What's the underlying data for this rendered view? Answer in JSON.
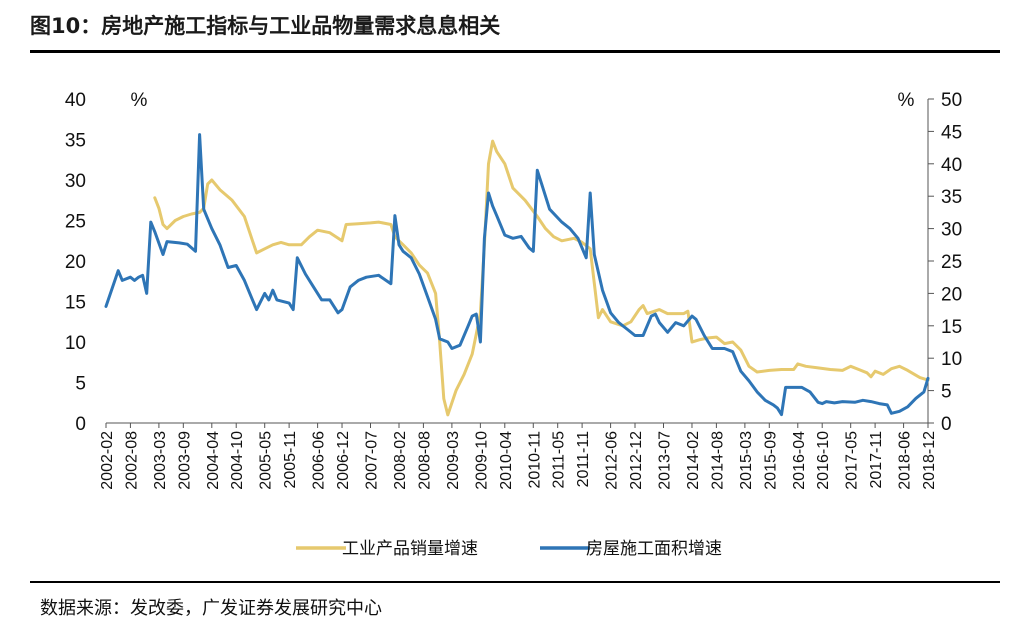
{
  "figure": {
    "title": "图10：房地产施工指标与工业品物量需求息息相关",
    "source": "数据来源：发改委，广发证券发展研究中心"
  },
  "chart_data": {
    "type": "line",
    "title": "图10：房地产施工指标与工业品物量需求息息相关",
    "left_axis": {
      "unit": "%",
      "ylim": [
        0,
        40
      ],
      "ticks": [
        0,
        5,
        10,
        15,
        20,
        25,
        30,
        35,
        40
      ]
    },
    "right_axis": {
      "unit": "%",
      "ylim": [
        0,
        50
      ],
      "ticks": [
        0,
        5,
        10,
        15,
        20,
        25,
        30,
        35,
        40,
        45,
        50
      ]
    },
    "x_ticks": [
      "2002-02",
      "2002-08",
      "2003-03",
      "2003-09",
      "2004-04",
      "2004-10",
      "2005-05",
      "2005-11",
      "2006-06",
      "2006-12",
      "2007-07",
      "2008-02",
      "2008-08",
      "2009-03",
      "2009-10",
      "2010-04",
      "2010-11",
      "2011-05",
      "2011-11",
      "2012-06",
      "2012-12",
      "2013-07",
      "2014-02",
      "2014-08",
      "2015-03",
      "2015-09",
      "2016-04",
      "2016-10",
      "2017-05",
      "2017-11",
      "2018-06",
      "2018-12"
    ],
    "x_range": [
      "2002-02",
      "2018-12"
    ],
    "grid": false,
    "legend_position": "bottom",
    "series": [
      {
        "name": "工业产品销量增速",
        "axis": "left",
        "color": "#E6C96E",
        "points": [
          [
            "2003-02",
            27.8
          ],
          [
            "2003-03",
            26.5
          ],
          [
            "2003-04",
            24.5
          ],
          [
            "2003-05",
            24.0
          ],
          [
            "2003-07",
            25.0
          ],
          [
            "2003-09",
            25.5
          ],
          [
            "2003-11",
            25.8
          ],
          [
            "2004-01",
            26.0
          ],
          [
            "2004-02",
            26.5
          ],
          [
            "2004-03",
            29.5
          ],
          [
            "2004-04",
            30.0
          ],
          [
            "2004-06",
            28.8
          ],
          [
            "2004-09",
            27.5
          ],
          [
            "2004-12",
            25.5
          ],
          [
            "2005-02",
            22.5
          ],
          [
            "2005-03",
            21.0
          ],
          [
            "2005-05",
            21.5
          ],
          [
            "2005-07",
            22.0
          ],
          [
            "2005-09",
            22.3
          ],
          [
            "2005-11",
            22.0
          ],
          [
            "2006-02",
            22.0
          ],
          [
            "2006-04",
            23.0
          ],
          [
            "2006-06",
            23.8
          ],
          [
            "2006-09",
            23.5
          ],
          [
            "2006-12",
            22.5
          ],
          [
            "2007-01",
            24.5
          ],
          [
            "2007-04",
            24.6
          ],
          [
            "2007-07",
            24.7
          ],
          [
            "2007-09",
            24.8
          ],
          [
            "2007-12",
            24.5
          ],
          [
            "2008-01",
            23.0
          ],
          [
            "2008-02",
            22.5
          ],
          [
            "2008-03",
            22.0
          ],
          [
            "2008-05",
            21.0
          ],
          [
            "2008-07",
            19.5
          ],
          [
            "2008-09",
            18.5
          ],
          [
            "2008-11",
            16.0
          ],
          [
            "2008-12",
            10.0
          ],
          [
            "2009-01",
            3.0
          ],
          [
            "2009-02",
            1.0
          ],
          [
            "2009-04",
            4.0
          ],
          [
            "2009-06",
            6.0
          ],
          [
            "2009-08",
            8.5
          ],
          [
            "2009-09",
            11.0
          ],
          [
            "2009-10",
            13.5
          ],
          [
            "2009-11",
            22.0
          ],
          [
            "2009-12",
            32.0
          ],
          [
            "2010-01",
            34.8
          ],
          [
            "2010-02",
            33.5
          ],
          [
            "2010-04",
            32.0
          ],
          [
            "2010-06",
            29.0
          ],
          [
            "2010-09",
            27.5
          ],
          [
            "2010-12",
            25.5
          ],
          [
            "2011-02",
            24.0
          ],
          [
            "2011-04",
            23.0
          ],
          [
            "2011-06",
            22.5
          ],
          [
            "2011-09",
            22.8
          ],
          [
            "2011-11",
            22.3
          ],
          [
            "2012-01",
            21.5
          ],
          [
            "2012-03",
            13.0
          ],
          [
            "2012-04",
            14.0
          ],
          [
            "2012-06",
            12.5
          ],
          [
            "2012-09",
            12.0
          ],
          [
            "2012-11",
            12.5
          ],
          [
            "2013-01",
            14.0
          ],
          [
            "2013-02",
            14.5
          ],
          [
            "2013-03",
            13.5
          ],
          [
            "2013-06",
            14.0
          ],
          [
            "2013-08",
            13.5
          ],
          [
            "2013-10",
            13.5
          ],
          [
            "2013-12",
            13.5
          ],
          [
            "2014-01",
            13.8
          ],
          [
            "2014-02",
            10.0
          ],
          [
            "2014-04",
            10.3
          ],
          [
            "2014-06",
            10.5
          ],
          [
            "2014-08",
            10.6
          ],
          [
            "2014-10",
            9.8
          ],
          [
            "2014-12",
            10.0
          ],
          [
            "2015-02",
            9.0
          ],
          [
            "2015-04",
            7.0
          ],
          [
            "2015-06",
            6.3
          ],
          [
            "2015-09",
            6.5
          ],
          [
            "2015-12",
            6.6
          ],
          [
            "2016-03",
            6.6
          ],
          [
            "2016-04",
            7.3
          ],
          [
            "2016-06",
            7.0
          ],
          [
            "2016-09",
            6.8
          ],
          [
            "2016-12",
            6.6
          ],
          [
            "2017-03",
            6.5
          ],
          [
            "2017-05",
            7.0
          ],
          [
            "2017-07",
            6.6
          ],
          [
            "2017-09",
            6.2
          ],
          [
            "2017-10",
            5.7
          ],
          [
            "2017-11",
            6.4
          ],
          [
            "2018-01",
            6.0
          ],
          [
            "2018-03",
            6.7
          ],
          [
            "2018-05",
            7.0
          ],
          [
            "2018-07",
            6.5
          ],
          [
            "2018-09",
            5.9
          ],
          [
            "2018-10",
            5.6
          ],
          [
            "2018-12",
            5.3
          ]
        ]
      },
      {
        "name": "房屋施工面积增速",
        "axis": "right",
        "color": "#2E75B6",
        "points": [
          [
            "2002-02",
            18.0
          ],
          [
            "2002-05",
            23.5
          ],
          [
            "2002-06",
            22.0
          ],
          [
            "2002-08",
            22.5
          ],
          [
            "2002-09",
            22.0
          ],
          [
            "2002-10",
            22.5
          ],
          [
            "2002-11",
            22.8
          ],
          [
            "2002-12",
            20.0
          ],
          [
            "2003-01",
            31.0
          ],
          [
            "2003-02",
            29.5
          ],
          [
            "2003-04",
            26.0
          ],
          [
            "2003-05",
            28.0
          ],
          [
            "2003-08",
            27.8
          ],
          [
            "2003-10",
            27.6
          ],
          [
            "2003-12",
            26.5
          ],
          [
            "2004-01",
            44.5
          ],
          [
            "2004-02",
            33.0
          ],
          [
            "2004-04",
            30.0
          ],
          [
            "2004-06",
            27.5
          ],
          [
            "2004-08",
            24.0
          ],
          [
            "2004-10",
            24.3
          ],
          [
            "2004-12",
            22.0
          ],
          [
            "2005-02",
            19.0
          ],
          [
            "2005-03",
            17.5
          ],
          [
            "2005-05",
            20.0
          ],
          [
            "2005-06",
            19.0
          ],
          [
            "2005-07",
            20.5
          ],
          [
            "2005-08",
            19.0
          ],
          [
            "2005-11",
            18.5
          ],
          [
            "2005-12",
            17.5
          ],
          [
            "2006-01",
            25.5
          ],
          [
            "2006-03",
            23.0
          ],
          [
            "2006-05",
            21.0
          ],
          [
            "2006-07",
            19.0
          ],
          [
            "2006-09",
            19.0
          ],
          [
            "2006-11",
            17.0
          ],
          [
            "2006-12",
            17.5
          ],
          [
            "2007-02",
            21.0
          ],
          [
            "2007-04",
            22.0
          ],
          [
            "2007-06",
            22.5
          ],
          [
            "2007-09",
            22.8
          ],
          [
            "2007-12",
            21.5
          ],
          [
            "2008-01",
            32.0
          ],
          [
            "2008-02",
            27.5
          ],
          [
            "2008-03",
            26.5
          ],
          [
            "2008-05",
            25.5
          ],
          [
            "2008-07",
            23.0
          ],
          [
            "2008-09",
            19.5
          ],
          [
            "2008-11",
            16.0
          ],
          [
            "2008-12",
            13.0
          ],
          [
            "2009-02",
            12.5
          ],
          [
            "2009-03",
            11.5
          ],
          [
            "2009-05",
            12.0
          ],
          [
            "2009-07",
            15.0
          ],
          [
            "2009-08",
            16.5
          ],
          [
            "2009-09",
            16.8
          ],
          [
            "2009-10",
            12.5
          ],
          [
            "2009-11",
            28.5
          ],
          [
            "2009-12",
            35.5
          ],
          [
            "2010-01",
            33.5
          ],
          [
            "2010-02",
            32.0
          ],
          [
            "2010-04",
            29.0
          ],
          [
            "2010-06",
            28.5
          ],
          [
            "2010-08",
            28.8
          ],
          [
            "2010-10",
            27.0
          ],
          [
            "2010-11",
            26.5
          ],
          [
            "2010-12",
            39.0
          ],
          [
            "2011-01",
            37.0
          ],
          [
            "2011-03",
            33.0
          ],
          [
            "2011-06",
            31.0
          ],
          [
            "2011-08",
            30.0
          ],
          [
            "2011-10",
            28.5
          ],
          [
            "2011-11",
            27.0
          ],
          [
            "2011-12",
            25.5
          ],
          [
            "2012-01",
            35.5
          ],
          [
            "2012-02",
            26.0
          ],
          [
            "2012-04",
            20.5
          ],
          [
            "2012-06",
            17.0
          ],
          [
            "2012-08",
            15.5
          ],
          [
            "2012-10",
            14.5
          ],
          [
            "2012-12",
            13.5
          ],
          [
            "2013-02",
            13.5
          ],
          [
            "2013-04",
            16.5
          ],
          [
            "2013-05",
            16.8
          ],
          [
            "2013-06",
            15.5
          ],
          [
            "2013-08",
            14.0
          ],
          [
            "2013-10",
            15.5
          ],
          [
            "2013-12",
            15.0
          ],
          [
            "2014-02",
            16.5
          ],
          [
            "2014-03",
            16.0
          ],
          [
            "2014-05",
            13.5
          ],
          [
            "2014-07",
            11.5
          ],
          [
            "2014-10",
            11.5
          ],
          [
            "2014-12",
            11.0
          ],
          [
            "2015-02",
            8.0
          ],
          [
            "2015-04",
            6.5
          ],
          [
            "2015-06",
            4.8
          ],
          [
            "2015-08",
            3.5
          ],
          [
            "2015-10",
            2.8
          ],
          [
            "2015-11",
            2.3
          ],
          [
            "2015-12",
            1.3
          ],
          [
            "2016-01",
            5.5
          ],
          [
            "2016-03",
            5.5
          ],
          [
            "2016-05",
            5.5
          ],
          [
            "2016-07",
            4.8
          ],
          [
            "2016-09",
            3.2
          ],
          [
            "2016-10",
            3.0
          ],
          [
            "2016-11",
            3.3
          ],
          [
            "2017-01",
            3.1
          ],
          [
            "2017-03",
            3.3
          ],
          [
            "2017-06",
            3.2
          ],
          [
            "2017-08",
            3.5
          ],
          [
            "2017-10",
            3.3
          ],
          [
            "2017-12",
            3.0
          ],
          [
            "2018-02",
            2.8
          ],
          [
            "2018-03",
            1.5
          ],
          [
            "2018-05",
            1.8
          ],
          [
            "2018-07",
            2.5
          ],
          [
            "2018-09",
            3.8
          ],
          [
            "2018-11",
            4.8
          ],
          [
            "2018-12",
            6.9
          ]
        ]
      }
    ]
  }
}
